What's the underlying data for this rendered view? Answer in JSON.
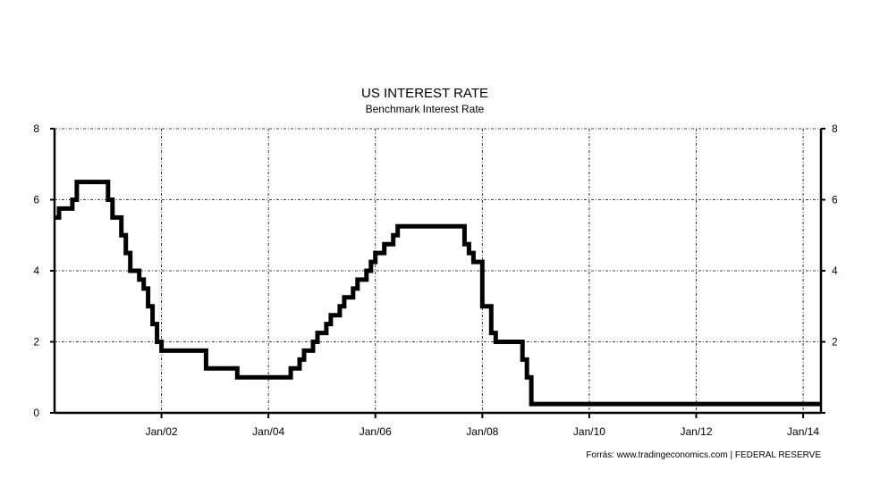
{
  "chart_data": {
    "type": "line",
    "title": "US INTEREST RATE",
    "subtitle": "Benchmark Interest Rate",
    "source": "Forrás: www.tradingeconomics.com | FEDERAL RESERVE",
    "ylim": [
      0,
      8
    ],
    "yticks": [
      0,
      2,
      4,
      6,
      8
    ],
    "xlim": [
      "2000-01",
      "2014-05"
    ],
    "xticks": [
      {
        "date": "2002-01",
        "label": "Jan/02"
      },
      {
        "date": "2004-01",
        "label": "Jan/04"
      },
      {
        "date": "2006-01",
        "label": "Jan/06"
      },
      {
        "date": "2008-01",
        "label": "Jan/08"
      },
      {
        "date": "2010-01",
        "label": "Jan/10"
      },
      {
        "date": "2012-01",
        "label": "Jan/12"
      },
      {
        "date": "2014-01",
        "label": "Jan/14"
      }
    ],
    "grid": true,
    "step": true,
    "line_color": "#000000",
    "series": [
      {
        "x": [
          "2000-01",
          "2000-02",
          "2000-03",
          "2000-05",
          "2000-06",
          "2001-01",
          "2001-02",
          "2001-03",
          "2001-04",
          "2001-05",
          "2001-06",
          "2001-08",
          "2001-09",
          "2001-10",
          "2001-11",
          "2001-12",
          "2002-01",
          "2002-11",
          "2003-06",
          "2004-06",
          "2004-08",
          "2004-09",
          "2004-11",
          "2004-12",
          "2005-02",
          "2005-03",
          "2005-05",
          "2005-06",
          "2005-08",
          "2005-09",
          "2005-11",
          "2005-12",
          "2006-01",
          "2006-03",
          "2006-05",
          "2006-06",
          "2006-07",
          "2007-09",
          "2007-10",
          "2007-11",
          "2008-01",
          "2008-02",
          "2008-03",
          "2008-04",
          "2008-05",
          "2008-10",
          "2008-11",
          "2008-12",
          "2014-05"
        ],
        "y": [
          5.5,
          5.75,
          5.75,
          6.0,
          6.5,
          6.0,
          5.5,
          5.5,
          5.0,
          4.5,
          4.0,
          3.75,
          3.5,
          3.0,
          2.5,
          2.0,
          1.75,
          1.25,
          1.0,
          1.25,
          1.5,
          1.75,
          2.0,
          2.25,
          2.5,
          2.75,
          3.0,
          3.25,
          3.5,
          3.75,
          4.0,
          4.25,
          4.5,
          4.75,
          5.0,
          5.25,
          5.25,
          4.75,
          4.5,
          4.25,
          3.0,
          3.0,
          2.25,
          2.0,
          2.0,
          1.5,
          1.0,
          0.25,
          0.25
        ]
      }
    ]
  }
}
